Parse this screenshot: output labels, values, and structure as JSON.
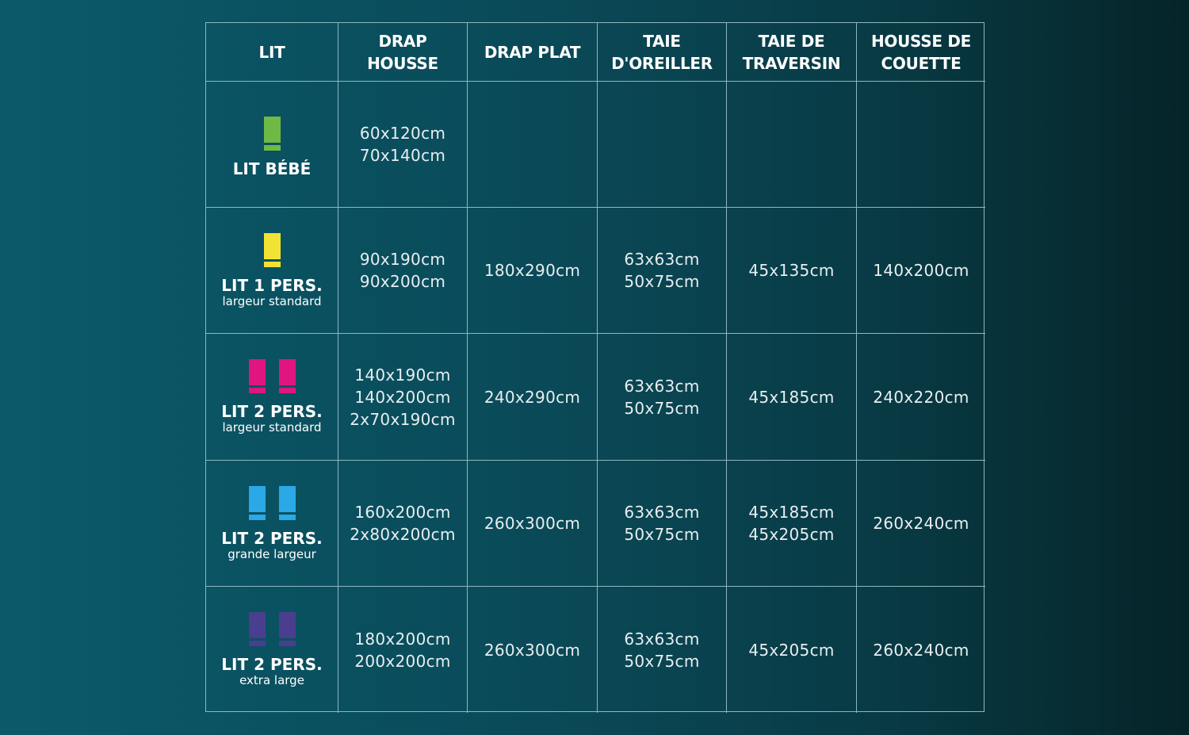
{
  "headers": [
    "LIT",
    "DRAP HOUSSE",
    "DRAP PLAT",
    "TAIE D'OREILLER",
    "TAIE DE TRAVERSIN",
    "HOUSSE DE COUETTE"
  ],
  "rows": [
    {
      "bed": "LIT BÉBÉ",
      "sub": "",
      "icon": "single-bed-icon",
      "icon_count": 1,
      "color": "#6fb944",
      "drap_housse": [
        "60x120cm",
        "70x140cm"
      ],
      "drap_plat": [],
      "taie_oreiller": [],
      "taie_traversin": [],
      "housse_couette": []
    },
    {
      "bed": "LIT 1 PERS.",
      "sub": "largeur standard",
      "icon": "single-bed-icon",
      "icon_count": 1,
      "color": "#f2e233",
      "drap_housse": [
        "90x190cm",
        "90x200cm"
      ],
      "drap_plat": [
        "180x290cm"
      ],
      "taie_oreiller": [
        "63x63cm",
        "50x75cm"
      ],
      "taie_traversin": [
        "45x135cm"
      ],
      "housse_couette": [
        "140x200cm"
      ]
    },
    {
      "bed": "LIT 2 PERS.",
      "sub": "largeur standard",
      "icon": "double-bed-icon",
      "icon_count": 2,
      "color": "#e0157f",
      "drap_housse": [
        "140x190cm",
        "140x200cm",
        "2x70x190cm"
      ],
      "drap_plat": [
        "240x290cm"
      ],
      "taie_oreiller": [
        "63x63cm",
        "50x75cm"
      ],
      "taie_traversin": [
        "45x185cm"
      ],
      "housse_couette": [
        "240x220cm"
      ]
    },
    {
      "bed": "LIT 2 PERS.",
      "sub": "grande largeur",
      "icon": "double-bed-icon",
      "icon_count": 2,
      "color": "#2aa9e6",
      "drap_housse": [
        "160x200cm",
        "2x80x200cm"
      ],
      "drap_plat": [
        "260x300cm"
      ],
      "taie_oreiller": [
        "63x63cm",
        "50x75cm"
      ],
      "taie_traversin": [
        "45x185cm",
        "45x205cm"
      ],
      "housse_couette": [
        "260x240cm"
      ]
    },
    {
      "bed": "LIT 2 PERS.",
      "sub": "extra large",
      "icon": "double-bed-icon",
      "icon_count": 2,
      "color": "#4a3e8e",
      "drap_housse": [
        "180x200cm",
        "200x200cm"
      ],
      "drap_plat": [
        "260x300cm"
      ],
      "taie_oreiller": [
        "63x63cm",
        "50x75cm"
      ],
      "taie_traversin": [
        "45x205cm"
      ],
      "housse_couette": [
        "260x240cm"
      ]
    }
  ]
}
